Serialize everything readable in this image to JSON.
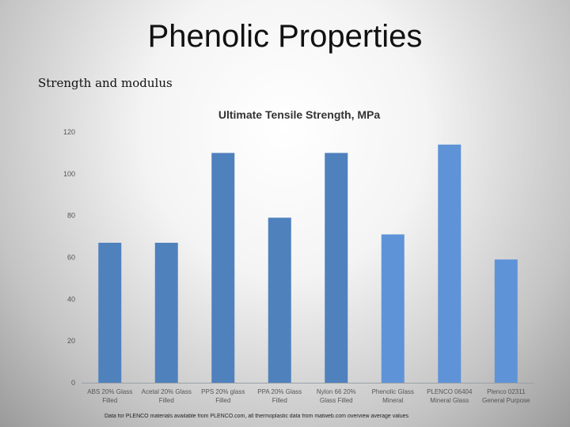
{
  "slide": {
    "title": "Phenolic Properties",
    "subtitle": "Strength and modulus",
    "footnote": "Data for PLENCO materials available from PLENCO.com, all thermoplastic data from matweb.com overview average values"
  },
  "chart_data": {
    "type": "bar",
    "title": "Ultimate Tensile Strength, MPa",
    "xlabel": "",
    "ylabel": "",
    "ylim": [
      0,
      120
    ],
    "yticks": [
      0,
      20,
      40,
      60,
      80,
      100,
      120
    ],
    "grid": false,
    "categories": [
      [
        "ABS 20% Glass",
        "Filled"
      ],
      [
        "Acetal 20% Glass",
        "Filled"
      ],
      [
        "PPS 20% glass",
        "Filled"
      ],
      [
        "PPA 20% Glass",
        "Filled"
      ],
      [
        "Nylon 66 20%",
        "Glass Filled"
      ],
      [
        "Phenolic Glass",
        "Mineral"
      ],
      [
        "PLENCO 06404",
        "Mineral Glass"
      ],
      [
        "Plenco 02311",
        "General Purpose"
      ]
    ],
    "values": [
      67,
      67,
      110,
      79,
      110,
      71,
      114,
      59
    ],
    "colors": {
      "bar_default": "#4f81bd",
      "bar_light": "#5f93d8",
      "axis": "#9aa0a6",
      "tick_text": "#555555",
      "title_text": "#333333"
    }
  }
}
